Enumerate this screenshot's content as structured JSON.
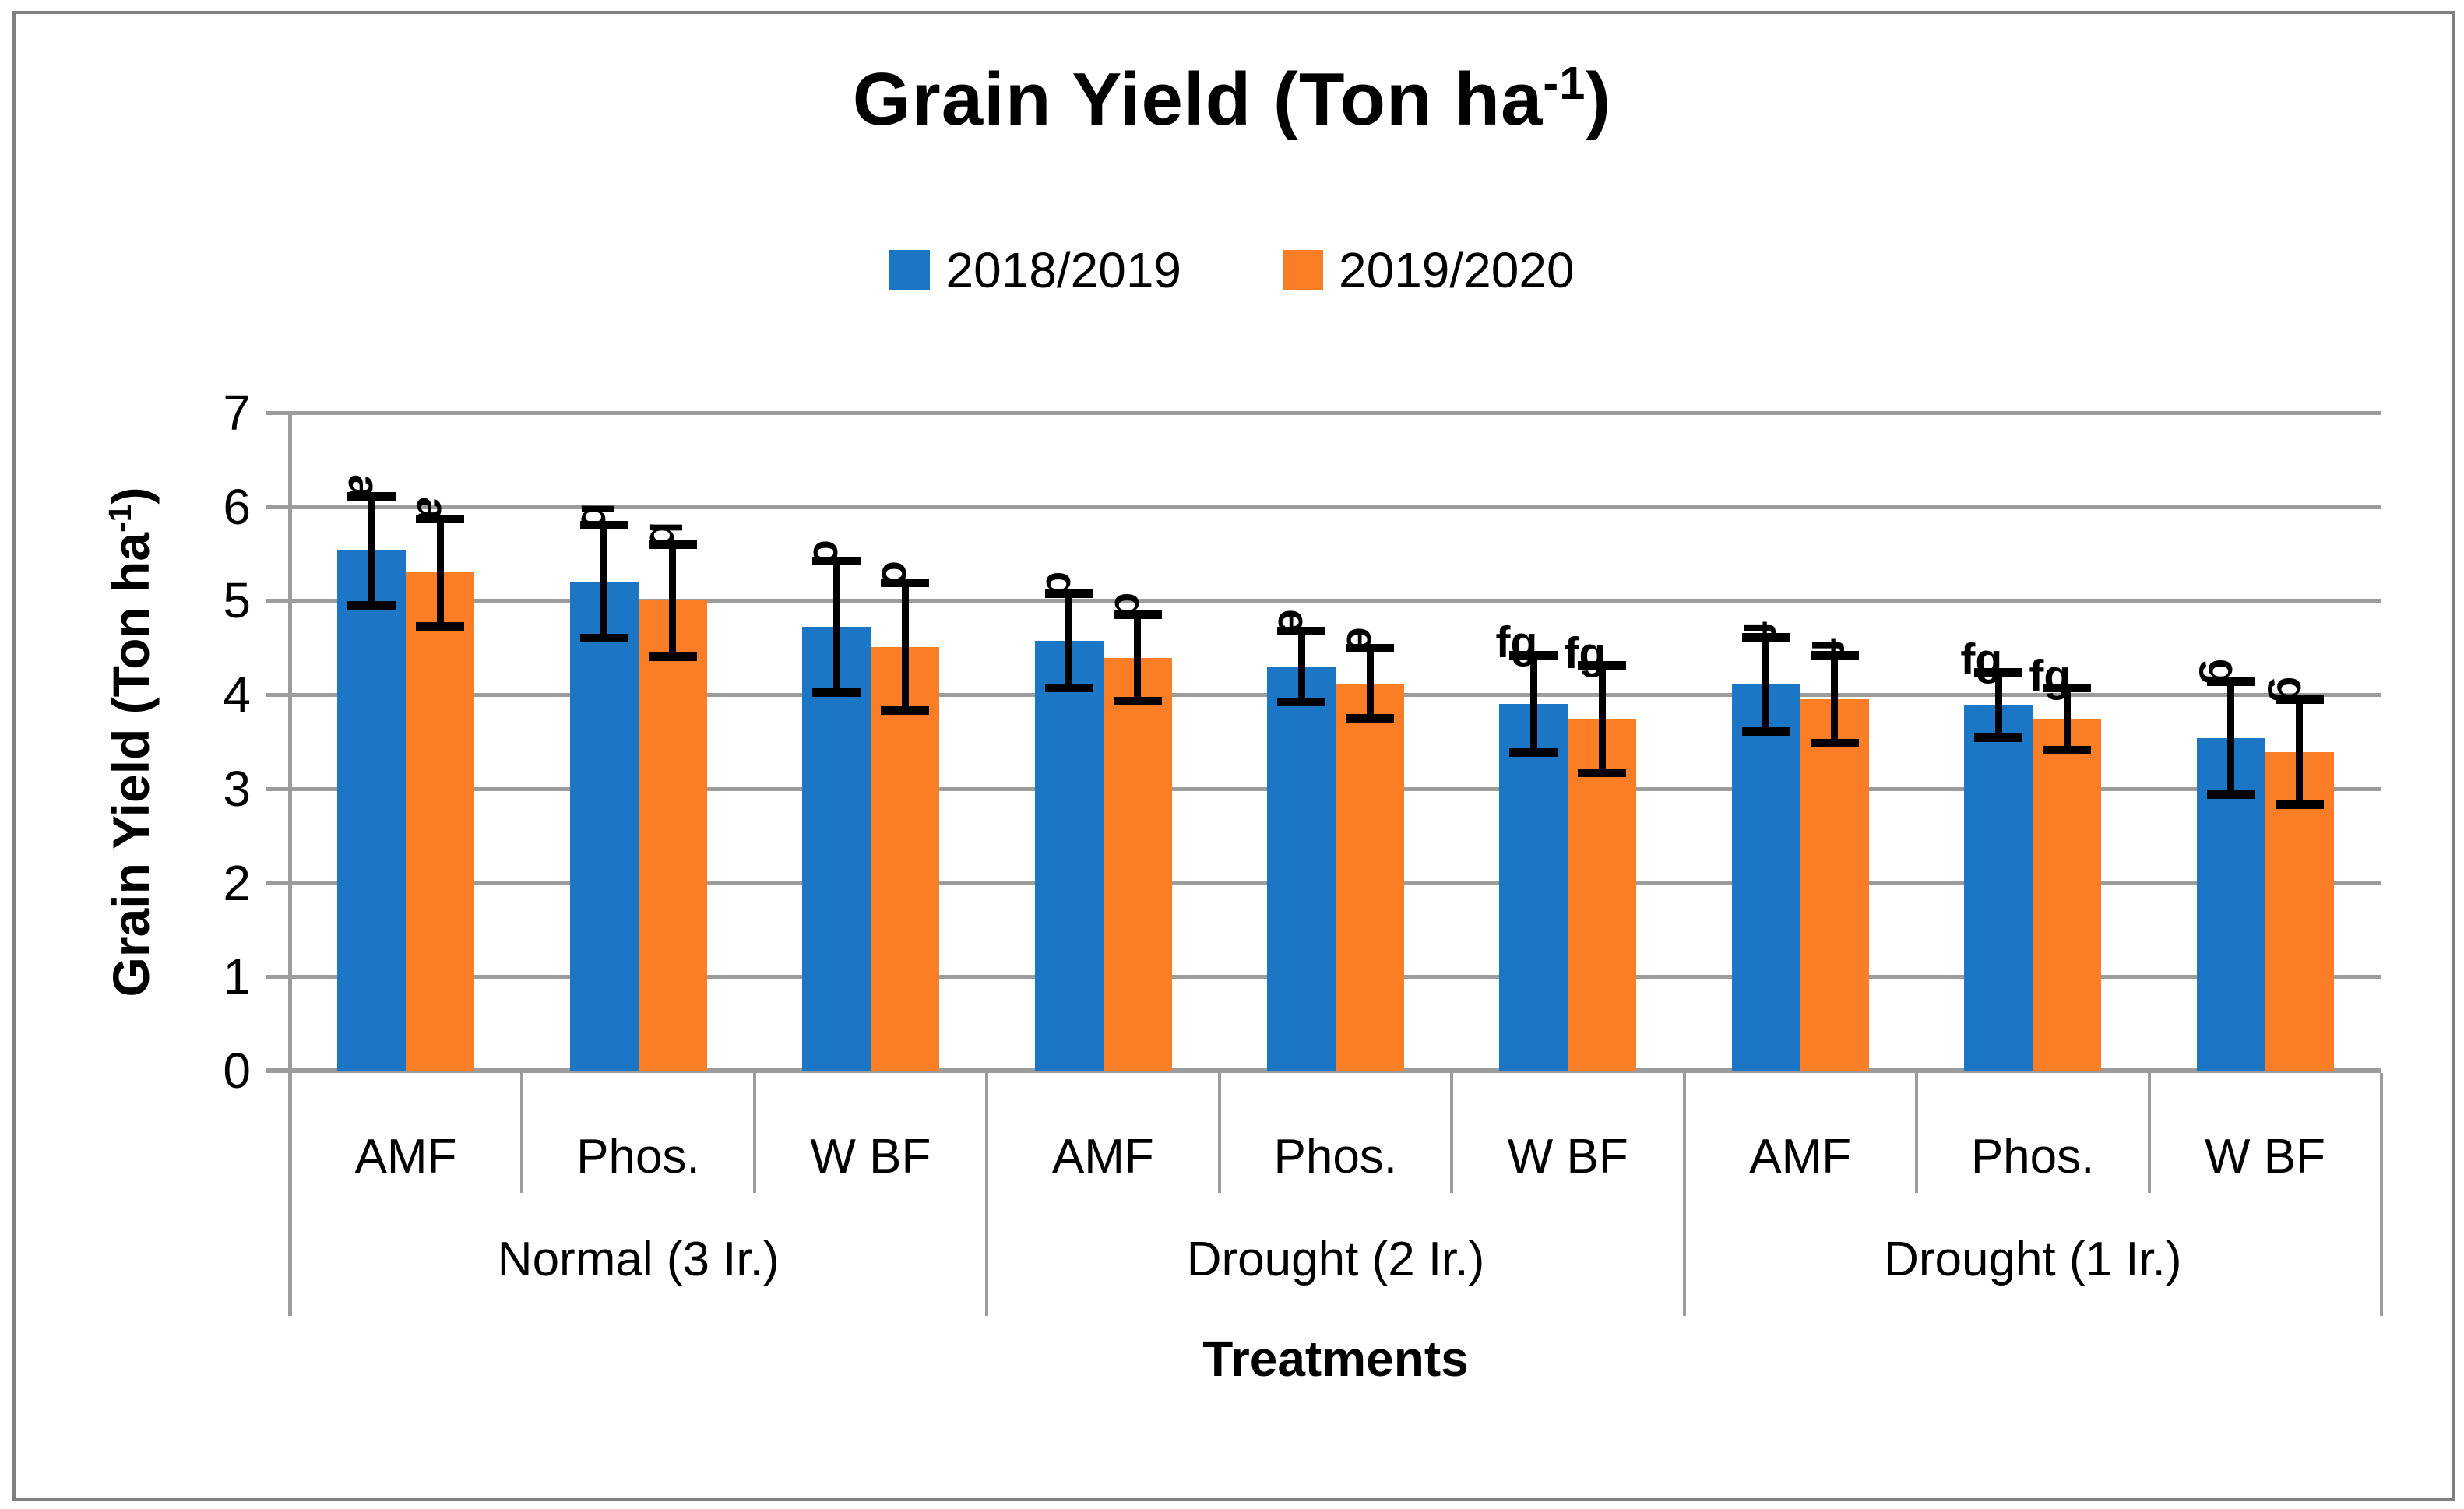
{
  "title": {
    "text": "Grain Yield (Ton ha",
    "sup": "-1",
    "suffix": ")"
  },
  "legend": {
    "items": [
      {
        "label": "2018/2019",
        "color": "#1B76C6"
      },
      {
        "label": "2019/2020",
        "color": "#FB7D26"
      }
    ]
  },
  "y_axis": {
    "title_text": "Grain Yield (Ton ha",
    "title_sup": "-1",
    "title_suffix": ")",
    "tick_labels": [
      "0",
      "1",
      "2",
      "3",
      "4",
      "5",
      "6",
      "7"
    ],
    "min": 0,
    "max": 7
  },
  "x_axis": {
    "title": "Treatments",
    "treatments": [
      "AMF",
      "Phos.",
      "W BF"
    ],
    "group_labels": [
      "Normal (3 Ir.)",
      "Drought (2 Ir.)",
      "Drought (1 Ir.)"
    ]
  },
  "colors": {
    "grid": "#9C9C9C",
    "error_bar": "#000000",
    "frame_border": "#808080"
  },
  "chart_data": {
    "type": "bar",
    "title": "Grain Yield (Ton ha-1)",
    "xlabel": "Treatments",
    "ylabel": "Grain Yield (Ton ha-1)",
    "ylim": [
      0,
      7
    ],
    "grid": true,
    "legend_position": "top",
    "group_labels": [
      "Normal (3 Ir.)",
      "Drought (2 Ir.)",
      "Drought (1 Ir.)"
    ],
    "categories": [
      "AMF",
      "Phos.",
      "W BF",
      "AMF",
      "Phos.",
      "W BF",
      "AMF",
      "Phos.",
      "W BF"
    ],
    "category_groups": [
      "Normal (3 Ir.)",
      "Normal (3 Ir.)",
      "Normal (3 Ir.)",
      "Drought (2 Ir.)",
      "Drought (2 Ir.)",
      "Drought (2 Ir.)",
      "Drought (1 Ir.)",
      "Drought (1 Ir.)",
      "Drought (1 Ir.)"
    ],
    "series": [
      {
        "name": "2018/2019",
        "color": "#1B76C6",
        "values": [
          5.53,
          5.2,
          4.72,
          4.57,
          4.3,
          3.9,
          4.11,
          3.89,
          3.54
        ],
        "errors": [
          0.58,
          0.6,
          0.7,
          0.5,
          0.38,
          0.52,
          0.5,
          0.35,
          0.6
        ],
        "letters": [
          "a",
          "b",
          "c",
          "d",
          "e",
          "fg",
          "f",
          "fg",
          "g"
        ]
      },
      {
        "name": "2019/2020",
        "color": "#FB7D26",
        "values": [
          5.3,
          5.0,
          4.51,
          4.39,
          4.12,
          3.74,
          3.95,
          3.74,
          3.39
        ],
        "errors": [
          0.57,
          0.6,
          0.68,
          0.46,
          0.37,
          0.57,
          0.47,
          0.33,
          0.56
        ],
        "letters": [
          "a",
          "b",
          "c",
          "d",
          "e",
          "fg",
          "f",
          "fg",
          "g"
        ]
      }
    ]
  }
}
